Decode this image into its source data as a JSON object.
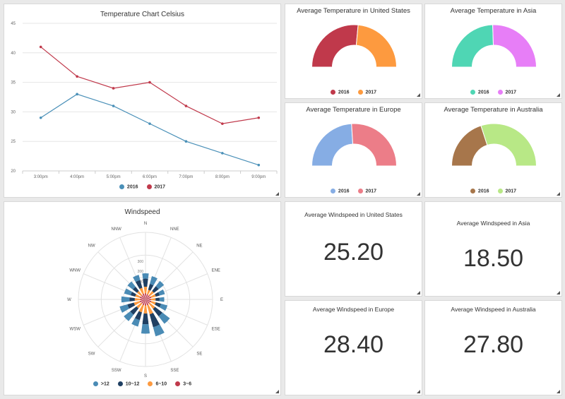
{
  "panels": {
    "temp_chart": {
      "title": "Temperature Chart Celsius"
    },
    "gauge_us": {
      "title": "Average Temperature in United States"
    },
    "gauge_asia": {
      "title": "Average Temperature in Asia"
    },
    "gauge_europe": {
      "title": "Average Temperature in Europe"
    },
    "gauge_australia": {
      "title": "Average Temperature in Australia"
    },
    "windrose": {
      "title": "Windspeed"
    },
    "ws_us": {
      "title": "Average Windspeed in United States",
      "value": "25.20"
    },
    "ws_asia": {
      "title": "Average Windspeed in Asia",
      "value": "18.50"
    },
    "ws_europe": {
      "title": "Average Windspeed in Europe",
      "value": "28.40"
    },
    "ws_australia": {
      "title": "Average Windspeed in Australia",
      "value": "27.80"
    }
  },
  "chart_data": [
    {
      "type": "line",
      "title": "Temperature Chart Celsius",
      "categories": [
        "3:00pm",
        "4:00pm",
        "5:00pm",
        "6:00pm",
        "7:00pm",
        "8:00pm",
        "9:00pm"
      ],
      "ylim": [
        20,
        45
      ],
      "yticks": [
        20,
        25,
        30,
        35,
        40,
        45
      ],
      "grid": true,
      "legend": "bottom",
      "series": [
        {
          "name": "2016",
          "color": "#4a90b8",
          "values": [
            29,
            33,
            31,
            28,
            25,
            23,
            21
          ]
        },
        {
          "name": "2017",
          "color": "#c0394b",
          "values": [
            41,
            36,
            34,
            35,
            31,
            28,
            29
          ]
        }
      ]
    },
    {
      "type": "pie",
      "variant": "semi-donut",
      "title": "Average Temperature in United States",
      "legend": "bottom",
      "series": [
        {
          "name": "2016",
          "color": "#c0394b",
          "value": 53
        },
        {
          "name": "2017",
          "color": "#fd9a3f",
          "value": 47
        }
      ]
    },
    {
      "type": "pie",
      "variant": "semi-donut",
      "title": "Average Temperature in Asia",
      "legend": "bottom",
      "series": [
        {
          "name": "2016",
          "color": "#4fd6b4",
          "value": 49
        },
        {
          "name": "2017",
          "color": "#e77ef7",
          "value": 51
        }
      ]
    },
    {
      "type": "pie",
      "variant": "semi-donut",
      "title": "Average Temperature in Europe",
      "legend": "bottom",
      "series": [
        {
          "name": "2016",
          "color": "#86ade4",
          "value": 48
        },
        {
          "name": "2017",
          "color": "#ec7d88",
          "value": 52
        }
      ]
    },
    {
      "type": "pie",
      "variant": "semi-donut",
      "title": "Average Temperature in Australia",
      "legend": "bottom",
      "series": [
        {
          "name": "2016",
          "color": "#a7764b",
          "value": 40
        },
        {
          "name": "2017",
          "color": "#b8e886",
          "value": 60
        }
      ]
    },
    {
      "type": "bar",
      "variant": "polar-stacked",
      "title": "Windspeed",
      "categories": [
        "N",
        "NNE",
        "NE",
        "ENE",
        "E",
        "ESE",
        "SE",
        "SSE",
        "S",
        "SSW",
        "SW",
        "WSW",
        "W",
        "WNW",
        "NW",
        "NNW"
      ],
      "ylim": [
        0,
        500
      ],
      "ytick_labels": [
        "300",
        "200",
        "100"
      ],
      "legend": "bottom",
      "series": [
        {
          "name": "3~6",
          "color": "#c0394b",
          "values": [
            45,
            40,
            40,
            45,
            40,
            45,
            40,
            45,
            45,
            45,
            40,
            45,
            40,
            45,
            40,
            45
          ]
        },
        {
          "name": "6~10",
          "color": "#fd9a3f",
          "values": [
            50,
            35,
            40,
            35,
            35,
            35,
            50,
            70,
            60,
            55,
            45,
            45,
            40,
            35,
            40,
            45
          ]
        },
        {
          "name": "10~12",
          "color": "#1f3f62",
          "values": [
            60,
            45,
            45,
            30,
            30,
            40,
            70,
            100,
            80,
            60,
            60,
            50,
            40,
            35,
            40,
            60
          ]
        },
        {
          "name": ">12",
          "color": "#4a8bb5",
          "values": [
            40,
            60,
            50,
            40,
            35,
            50,
            70,
            70,
            70,
            50,
            60,
            60,
            60,
            50,
            50,
            40
          ]
        }
      ]
    }
  ]
}
